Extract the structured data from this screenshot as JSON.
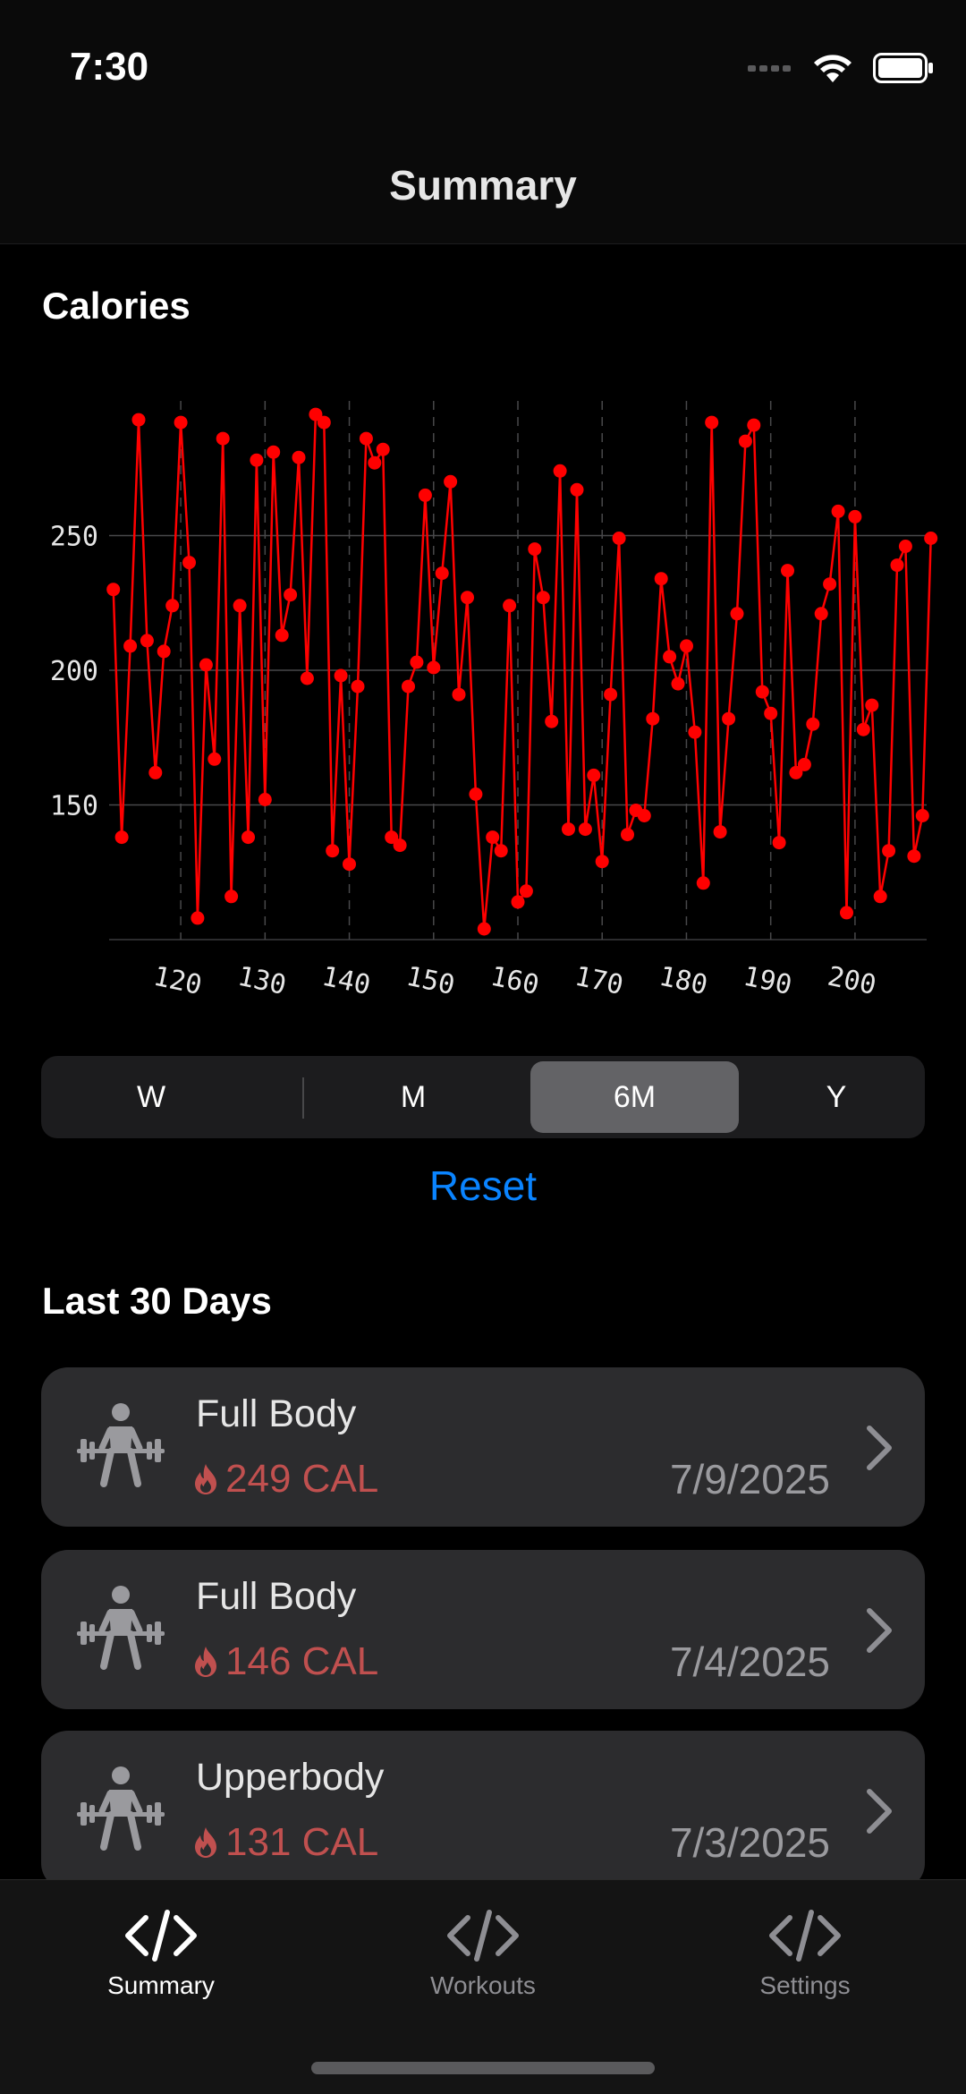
{
  "status_bar": {
    "time": "7:30"
  },
  "nav": {
    "title": "Summary"
  },
  "chart_section": {
    "title": "Calories"
  },
  "chart_data": {
    "type": "line",
    "title": "Calories",
    "xlabel": "",
    "ylabel": "",
    "x_ticks": [
      120,
      130,
      140,
      150,
      160,
      170,
      180,
      190,
      200
    ],
    "y_ticks": [
      150,
      200,
      250
    ],
    "xlim": [
      111.5,
      208.5
    ],
    "ylim": [
      100,
      300
    ],
    "grid": true,
    "series": [
      {
        "values": [
          [
            112,
            230
          ],
          [
            113,
            138
          ],
          [
            114,
            209
          ],
          [
            115,
            293
          ],
          [
            116,
            211
          ],
          [
            117,
            162
          ],
          [
            118,
            207
          ],
          [
            119,
            224
          ],
          [
            120,
            292
          ],
          [
            121,
            240
          ],
          [
            122,
            108
          ],
          [
            123,
            202
          ],
          [
            124,
            167
          ],
          [
            125,
            286
          ],
          [
            126,
            116
          ],
          [
            127,
            224
          ],
          [
            128,
            138
          ],
          [
            129,
            278
          ],
          [
            130,
            152
          ],
          [
            131,
            281
          ],
          [
            132,
            213
          ],
          [
            133,
            228
          ],
          [
            134,
            279
          ],
          [
            135,
            197
          ],
          [
            136,
            295
          ],
          [
            137,
            292
          ],
          [
            138,
            133
          ],
          [
            139,
            198
          ],
          [
            140,
            128
          ],
          [
            141,
            194
          ],
          [
            142,
            286
          ],
          [
            143,
            277
          ],
          [
            144,
            282
          ],
          [
            145,
            138
          ],
          [
            146,
            135
          ],
          [
            147,
            194
          ],
          [
            148,
            203
          ],
          [
            149,
            265
          ],
          [
            150,
            201
          ],
          [
            151,
            236
          ],
          [
            152,
            270
          ],
          [
            153,
            191
          ],
          [
            154,
            227
          ],
          [
            155,
            154
          ],
          [
            156,
            104
          ],
          [
            157,
            138
          ],
          [
            158,
            133
          ],
          [
            159,
            224
          ],
          [
            160,
            114
          ],
          [
            161,
            118
          ],
          [
            162,
            245
          ],
          [
            163,
            227
          ],
          [
            164,
            181
          ],
          [
            165,
            274
          ],
          [
            166,
            141
          ],
          [
            167,
            267
          ],
          [
            168,
            141
          ],
          [
            169,
            161
          ],
          [
            170,
            129
          ],
          [
            171,
            191
          ],
          [
            172,
            249
          ],
          [
            173,
            139
          ],
          [
            174,
            148
          ],
          [
            175,
            146
          ],
          [
            176,
            182
          ],
          [
            177,
            234
          ],
          [
            178,
            205
          ],
          [
            179,
            195
          ],
          [
            180,
            209
          ],
          [
            181,
            177
          ],
          [
            182,
            121
          ],
          [
            183,
            292
          ],
          [
            184,
            140
          ],
          [
            185,
            182
          ],
          [
            186,
            221
          ],
          [
            187,
            285
          ],
          [
            188,
            291
          ],
          [
            189,
            192
          ],
          [
            190,
            184
          ],
          [
            191,
            136
          ],
          [
            192,
            237
          ],
          [
            193,
            162
          ],
          [
            194,
            165
          ],
          [
            195,
            180
          ],
          [
            196,
            221
          ],
          [
            197,
            232
          ],
          [
            198,
            259
          ],
          [
            199,
            110
          ],
          [
            200,
            257
          ],
          [
            201,
            178
          ],
          [
            202,
            187
          ],
          [
            203,
            116
          ],
          [
            204,
            133
          ],
          [
            205,
            239
          ],
          [
            206,
            246
          ],
          [
            207,
            131
          ],
          [
            208,
            146
          ],
          [
            209,
            249
          ]
        ]
      }
    ],
    "colors": {
      "line": "#ff0000",
      "grid": "#48484a",
      "axis_text": "#e6e6e6"
    }
  },
  "segmented_control": {
    "options": [
      "W",
      "M",
      "6M",
      "Y"
    ],
    "selected": "6M"
  },
  "reset_label": "Reset",
  "list_section": {
    "title": "Last 30 Days"
  },
  "workouts": [
    {
      "title": "Full Body",
      "calories": "249 CAL",
      "date": "7/9/2025",
      "icon": "weightlifting-icon"
    },
    {
      "title": "Full Body",
      "calories": "146 CAL",
      "date": "7/4/2025",
      "icon": "weightlifting-icon"
    },
    {
      "title": "Upperbody",
      "calories": "131 CAL",
      "date": "7/3/2025",
      "icon": "weightlifting-icon"
    }
  ],
  "tabs": [
    {
      "label": "Summary",
      "icon": "code-icon",
      "active": true
    },
    {
      "label": "Workouts",
      "icon": "code-icon",
      "active": false
    },
    {
      "label": "Settings",
      "icon": "code-icon",
      "active": false
    }
  ],
  "colors": {
    "accent": "#0a84ff",
    "calorie": "#c0504f",
    "card_bg": "#2c2c2e",
    "tab_active": "#ffffff",
    "tab_inactive": "#8e8e93"
  }
}
